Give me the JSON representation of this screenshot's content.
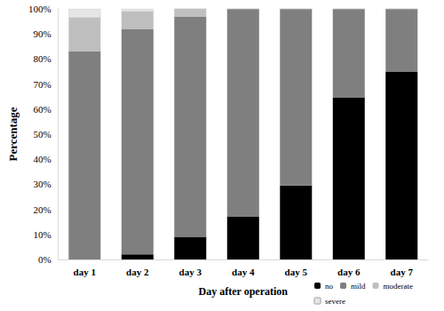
{
  "chart_data": {
    "type": "bar",
    "stacked": true,
    "grid": false,
    "legend": "bottom-right",
    "x_label": "Day after operation",
    "y_label": "Percentage",
    "categories": [
      "day 1",
      "day 2",
      "day 3",
      "day 4",
      "day 5",
      "day 6",
      "day 7"
    ],
    "series": [
      {
        "name": "no",
        "color": "#000000",
        "values": [
          0,
          2,
          9,
          17,
          29.5,
          64.5,
          75
        ]
      },
      {
        "name": "mild",
        "color": "#7f7f7f",
        "values": [
          83,
          90,
          88,
          83,
          70.5,
          35.5,
          25
        ]
      },
      {
        "name": "moderate",
        "color": "#bfbfbf",
        "values": [
          13.5,
          7,
          3,
          0,
          0,
          0,
          0
        ]
      },
      {
        "name": "severe",
        "color": "#e6e6e6",
        "values": [
          3.5,
          1,
          0,
          0,
          0,
          0,
          0
        ]
      }
    ],
    "ylim": [
      0,
      100
    ],
    "yticks": [
      {
        "value": 0,
        "label": "0%"
      },
      {
        "value": 10,
        "label": "10%"
      },
      {
        "value": 20,
        "label": "20%"
      },
      {
        "value": 30,
        "label": "30%"
      },
      {
        "value": 40,
        "label": "40%"
      },
      {
        "value": 50,
        "label": "50%"
      },
      {
        "value": 60,
        "label": "60%"
      },
      {
        "value": 70,
        "label": "70%"
      },
      {
        "value": 80,
        "label": "80%"
      },
      {
        "value": 90,
        "label": "90%"
      },
      {
        "value": 100,
        "label": "100%"
      }
    ]
  }
}
